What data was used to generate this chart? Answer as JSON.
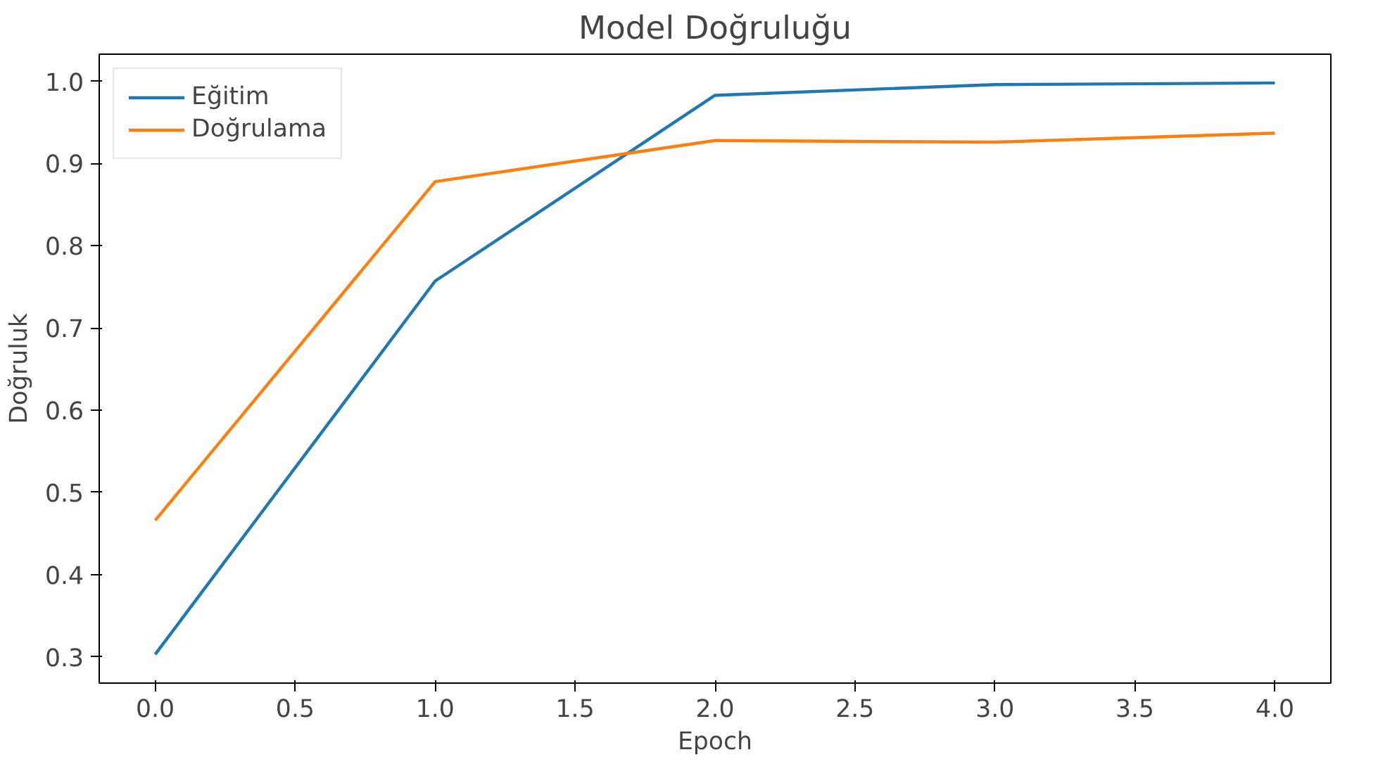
{
  "chart_data": {
    "type": "line",
    "title": "Model Doğruluğu",
    "xlabel": "Epoch",
    "ylabel": "Doğruluk",
    "x": [
      0,
      1,
      2,
      3,
      4
    ],
    "series": [
      {
        "name": "Eğitim",
        "color": "#1f77b4",
        "values": [
          0.303,
          0.757,
          0.983,
          0.996,
          0.998
        ]
      },
      {
        "name": "Doğrulama",
        "color": "#ff7f0e",
        "values": [
          0.466,
          0.878,
          0.928,
          0.926,
          0.937
        ]
      }
    ],
    "xlim": [
      -0.2,
      4.2
    ],
    "xticks": [
      {
        "value": 0,
        "label": "0.0"
      },
      {
        "value": 0.5,
        "label": "0.5"
      },
      {
        "value": 1,
        "label": "1.0"
      },
      {
        "value": 1.5,
        "label": "1.5"
      },
      {
        "value": 2,
        "label": "2.0"
      },
      {
        "value": 2.5,
        "label": "2.5"
      },
      {
        "value": 3,
        "label": "3.0"
      },
      {
        "value": 3.5,
        "label": "3.5"
      },
      {
        "value": 4,
        "label": "4.0"
      }
    ],
    "ylim": [
      0.268,
      1.033
    ],
    "yticks": [
      {
        "value": 0.3,
        "label": "0.3"
      },
      {
        "value": 0.4,
        "label": "0.4"
      },
      {
        "value": 0.5,
        "label": "0.5"
      },
      {
        "value": 0.6,
        "label": "0.6"
      },
      {
        "value": 0.7,
        "label": "0.7"
      },
      {
        "value": 0.8,
        "label": "0.8"
      },
      {
        "value": 0.9,
        "label": "0.9"
      },
      {
        "value": 1,
        "label": "1.0"
      }
    ],
    "grid": false,
    "legend": "top left",
    "line_style": "solid"
  }
}
